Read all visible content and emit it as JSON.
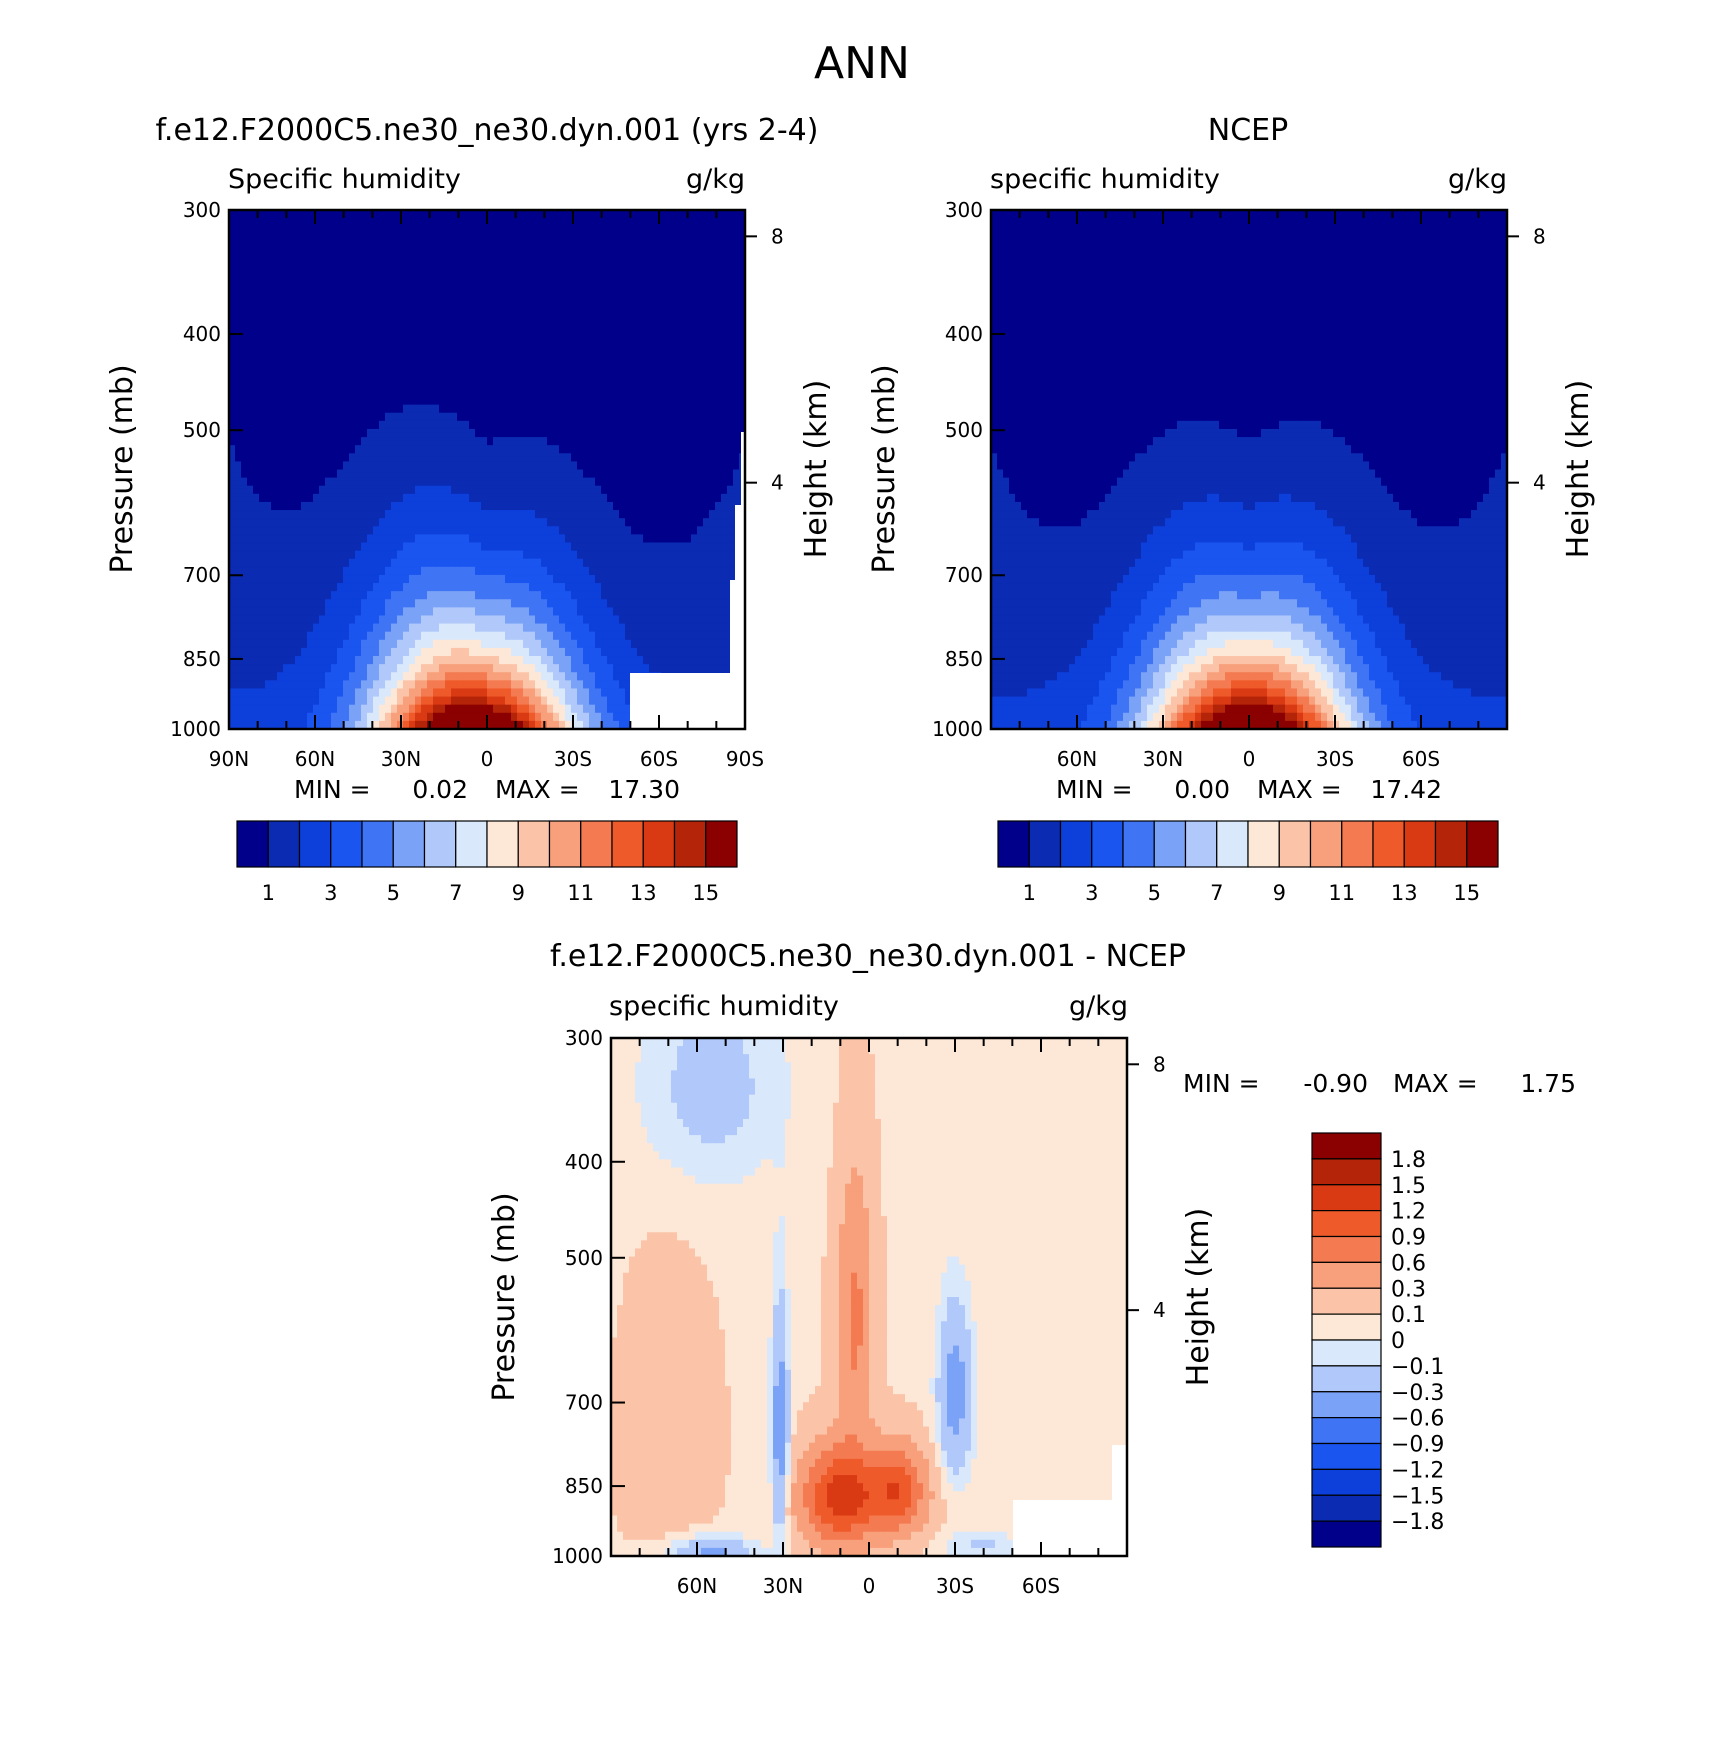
{
  "page_title": "ANN",
  "colors": {
    "abs": [
      "#00008b",
      "#0a2bb2",
      "#0d3fdb",
      "#1a55f0",
      "#3f74f5",
      "#7aa2f7",
      "#b0c8fa",
      "#d9e8fb",
      "#fde8d8",
      "#fbc4a8",
      "#f7a07b",
      "#f47a51",
      "#ef5a2a",
      "#d93a14",
      "#b32408",
      "#8b0000"
    ],
    "diff": [
      "#00008b",
      "#0a2bb2",
      "#0d3fdb",
      "#1a55f0",
      "#3f74f5",
      "#7aa2f7",
      "#b0c8fa",
      "#d9e8fb",
      "#fde8d8",
      "#fbc4a8",
      "#f7a07b",
      "#f47a51",
      "#ef5a2a",
      "#d93a14",
      "#b32408",
      "#8b0000"
    ]
  },
  "chart_data": [
    {
      "type": "heatmap",
      "title": "f.e12.F2000C5.ne30_ne30.dyn.001 (yrs 2-4)",
      "left_label": "Specific humidity",
      "right_label": "g/kg",
      "xlabel": "",
      "ylabel": "Pressure (mb)",
      "y2label": "Height (km)",
      "xticks": [
        "90N",
        "60N",
        "30N",
        "0",
        "30S",
        "60S",
        "90S"
      ],
      "xlim": [
        90,
        -90
      ],
      "yticks": [
        "300",
        "400",
        "500",
        "700",
        "850",
        "1000"
      ],
      "ylim": [
        1000,
        300
      ],
      "y_log": true,
      "y2ticks": [
        "8",
        "4"
      ],
      "min_label": "MIN =",
      "min_value": "0.02",
      "max_label": "MAX =",
      "max_value": "17.30",
      "colorbar_levels": [
        1,
        2,
        3,
        4,
        5,
        6,
        7,
        8,
        9,
        10,
        11,
        12,
        13,
        14,
        15
      ],
      "colorbar_labels": [
        "1",
        "3",
        "5",
        "7",
        "9",
        "11",
        "13",
        "15"
      ],
      "peak_lat": 5,
      "missing_region": "antarctica"
    },
    {
      "type": "heatmap",
      "title": "NCEP",
      "left_label": "specific humidity",
      "right_label": "g/kg",
      "xlabel": "",
      "ylabel": "Pressure (mb)",
      "y2label": "Height (km)",
      "xticks": [
        "60N",
        "30N",
        "0",
        "30S",
        "60S"
      ],
      "xlim": [
        90,
        -90
      ],
      "yticks": [
        "300",
        "400",
        "500",
        "700",
        "850",
        "1000"
      ],
      "ylim": [
        1000,
        300
      ],
      "y_log": true,
      "y2ticks": [
        "8",
        "4"
      ],
      "min_label": "MIN =",
      "min_value": "0.00",
      "max_label": "MAX =",
      "max_value": "17.42",
      "colorbar_levels": [
        1,
        2,
        3,
        4,
        5,
        6,
        7,
        8,
        9,
        10,
        11,
        12,
        13,
        14,
        15
      ],
      "colorbar_labels": [
        "1",
        "3",
        "5",
        "7",
        "9",
        "11",
        "13",
        "15"
      ],
      "peak_lat": 0
    },
    {
      "type": "heatmap",
      "title": "f.e12.F2000C5.ne30_ne30.dyn.001 - NCEP",
      "left_label": "specific humidity",
      "right_label": "g/kg",
      "xlabel": "",
      "ylabel": "Pressure (mb)",
      "y2label": "Height (km)",
      "xticks": [
        "60N",
        "30N",
        "0",
        "30S",
        "60S"
      ],
      "xlim": [
        90,
        -90
      ],
      "yticks": [
        "300",
        "400",
        "500",
        "700",
        "850",
        "1000"
      ],
      "ylim": [
        1000,
        300
      ],
      "y_log": true,
      "y2ticks": [
        "8",
        "4"
      ],
      "min_label": "MIN =",
      "min_value": "-0.90",
      "max_label": "MAX =",
      "max_value": "1.75",
      "colorbar_levels": [
        -1.8,
        -1.5,
        -1.2,
        -0.9,
        -0.6,
        -0.3,
        -0.1,
        0,
        0.1,
        0.3,
        0.6,
        0.9,
        1.2,
        1.5,
        1.8
      ],
      "colorbar_labels": [
        "1.8",
        "1.5",
        "1.2",
        "0.9",
        "0.6",
        "0.3",
        "0.1",
        "0",
        "-0.1",
        "-0.3",
        "-0.6",
        "-0.9",
        "-1.2",
        "-1.5",
        "-1.8"
      ],
      "missing_region": "antarctica"
    }
  ]
}
